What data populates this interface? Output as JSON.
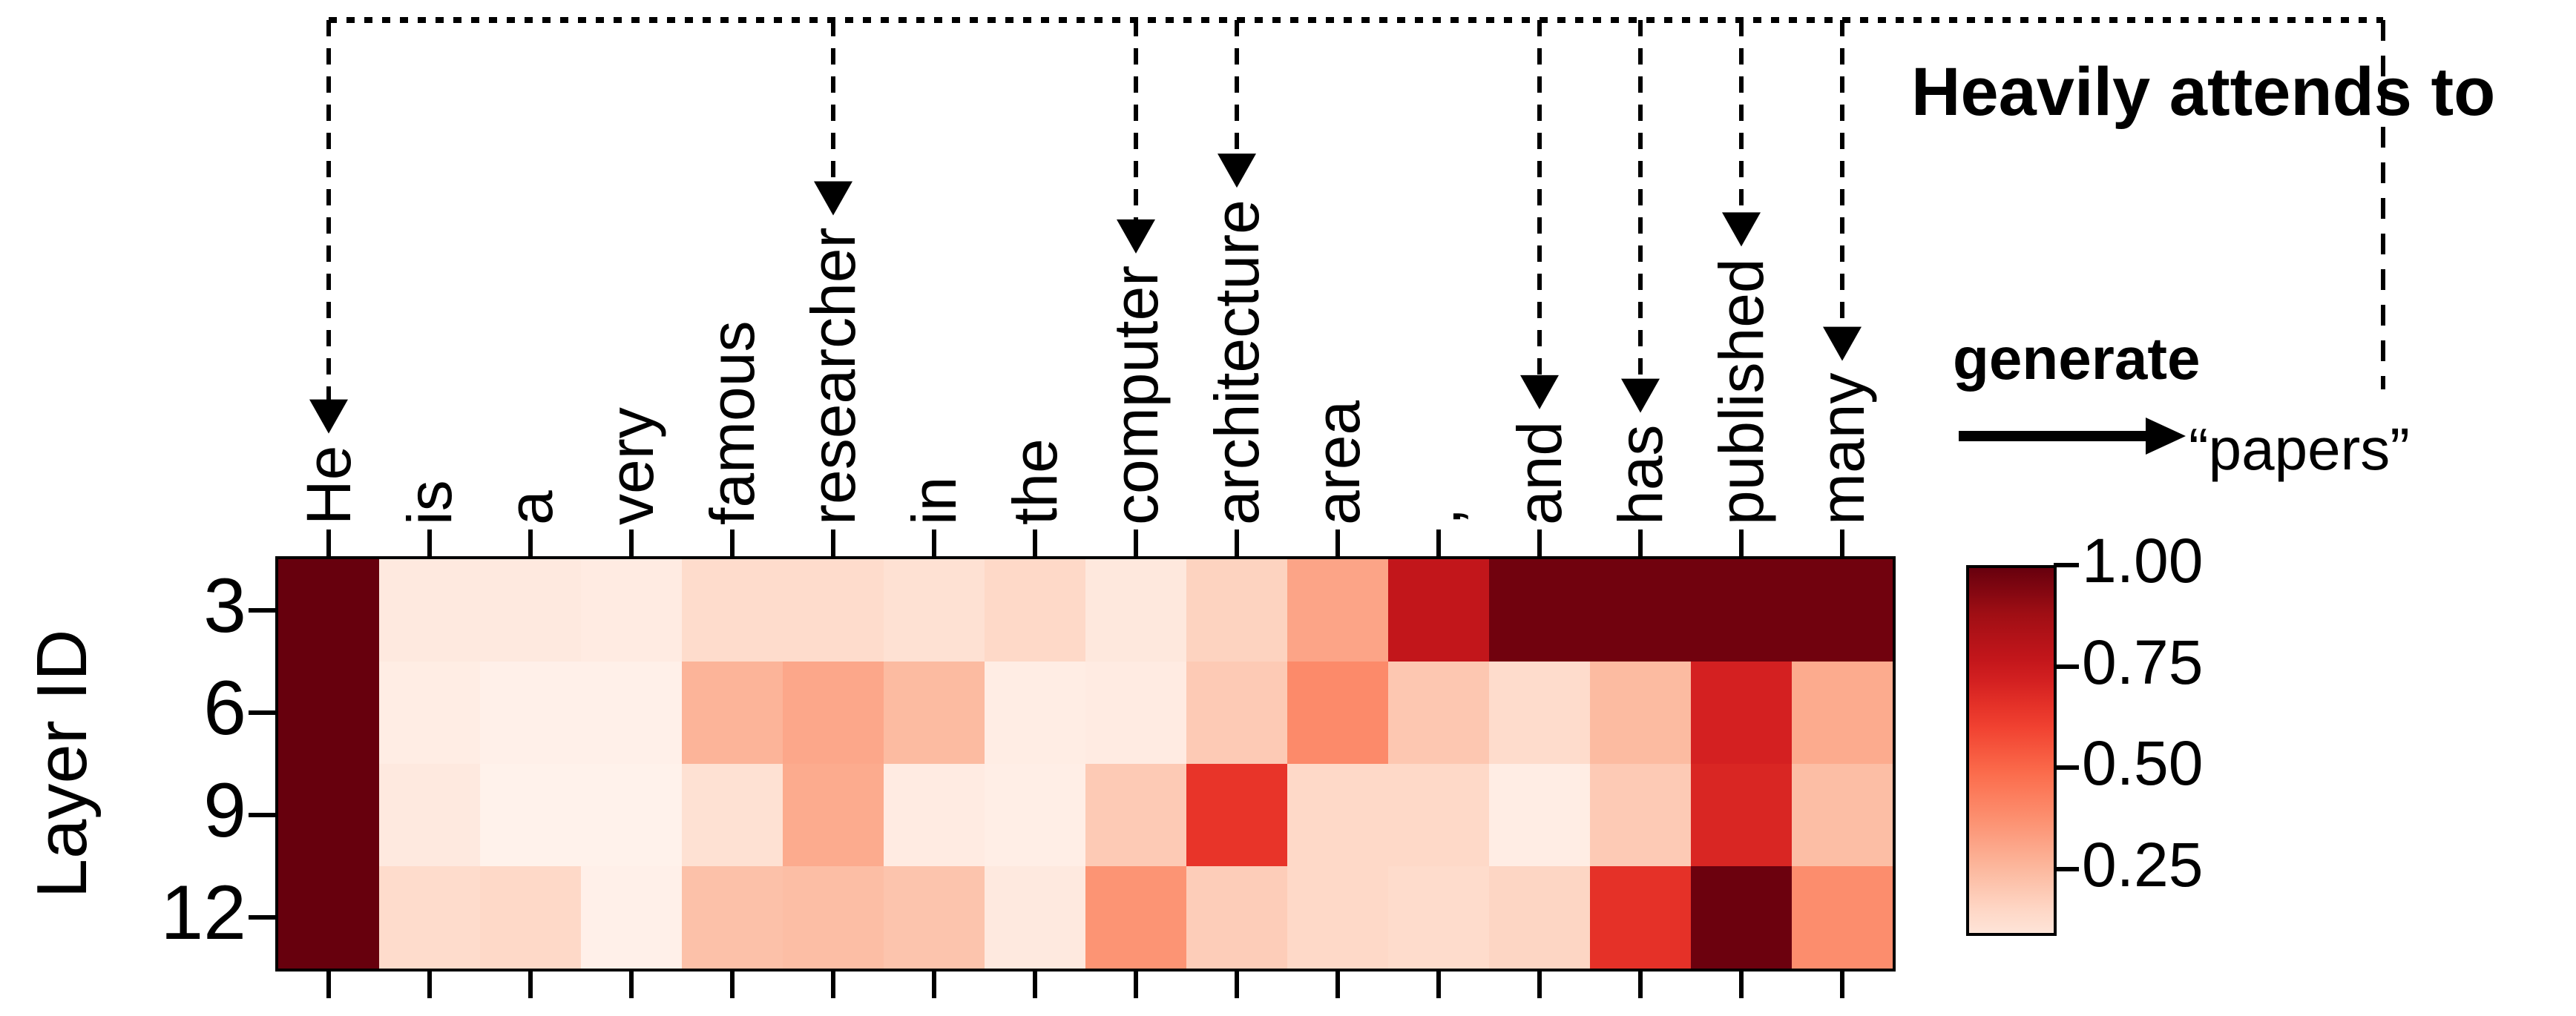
{
  "annotations": {
    "heavily_attends_to": "Heavily attends to",
    "generate": "generate",
    "generated_token": "“papers”"
  },
  "chart_data": {
    "type": "heatmap",
    "title": "",
    "xlabel": "",
    "ylabel": "Layer ID",
    "x_tokens": [
      "He",
      "is",
      "a",
      "very",
      "famous",
      "researcher",
      "in",
      "the",
      "computer",
      "architecture",
      "area",
      ",",
      "and",
      "has",
      "published",
      "many"
    ],
    "y_layers": [
      "3",
      "6",
      "9",
      "12"
    ],
    "colormap": "Reds",
    "values": [
      [
        1.0,
        0.07,
        0.07,
        0.06,
        0.14,
        0.14,
        0.12,
        0.15,
        0.08,
        0.17,
        0.32,
        0.78,
        0.98,
        0.98,
        0.98,
        0.98
      ],
      [
        1.0,
        0.05,
        0.03,
        0.03,
        0.27,
        0.31,
        0.25,
        0.05,
        0.06,
        0.2,
        0.4,
        0.21,
        0.14,
        0.25,
        0.72,
        0.3
      ],
      [
        1.0,
        0.07,
        0.02,
        0.02,
        0.12,
        0.3,
        0.06,
        0.04,
        0.2,
        0.65,
        0.15,
        0.15,
        0.05,
        0.2,
        0.7,
        0.24
      ],
      [
        1.0,
        0.14,
        0.15,
        0.03,
        0.23,
        0.24,
        0.22,
        0.07,
        0.37,
        0.19,
        0.15,
        0.14,
        0.16,
        0.66,
        0.99,
        0.39
      ]
    ],
    "colorbar": {
      "tick_labels": [
        "1.00",
        "0.75",
        "0.50",
        "0.25"
      ],
      "tick_values": [
        1.0,
        0.75,
        0.5,
        0.25
      ],
      "vmin": 0.1,
      "vmax": 1.0
    },
    "highly_attended_tokens": [
      "He",
      "researcher",
      "computer",
      "architecture",
      "and",
      "has",
      "published",
      "many"
    ],
    "arrow_token_indices": [
      0,
      5,
      8,
      9,
      12,
      13,
      14,
      15
    ],
    "colors": {
      "cmap_dark": "#67000d",
      "cmap_light": "#fff5f0",
      "annotation_color": "#000000"
    }
  }
}
